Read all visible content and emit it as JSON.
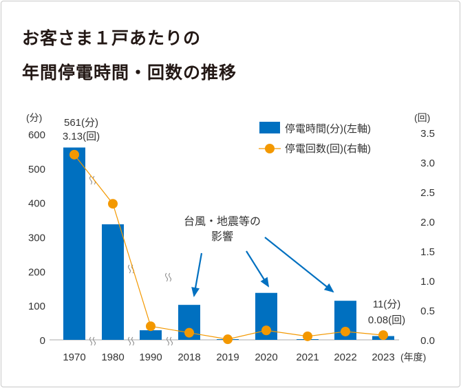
{
  "title_lines": [
    "お客さま１戸あたりの",
    "年間停電時間・回数の推移"
  ],
  "chart_data": {
    "type": "bar",
    "categories": [
      "1970",
      "1980",
      "1990",
      "2018",
      "2019",
      "2020",
      "2021",
      "2022",
      "2023"
    ],
    "x_unit_label": "(年度)",
    "series": [
      {
        "name": "停電時間(分)(左軸)",
        "type": "bar",
        "axis": "left",
        "color": "#0070c0",
        "values": [
          561,
          337,
          28,
          102,
          2,
          137,
          2,
          114,
          11
        ]
      },
      {
        "name": "停電回数(回)(右軸)",
        "type": "line",
        "axis": "right",
        "color": "#f39800",
        "values": [
          3.13,
          2.3,
          0.23,
          0.12,
          0.01,
          0.16,
          0.06,
          0.14,
          0.08
        ]
      }
    ],
    "left_axis": {
      "unit_label": "(分)",
      "ylim": [
        0,
        600
      ],
      "ticks": [
        "0",
        "100",
        "200",
        "300",
        "400",
        "500",
        "600"
      ]
    },
    "right_axis": {
      "unit_label": "(回)",
      "ylim": [
        0,
        3.5
      ],
      "ticks": [
        "0.0",
        "0.5",
        "1.0",
        "1.5",
        "2.0",
        "2.5",
        "3.0",
        "3.5"
      ]
    },
    "annotations": {
      "first": [
        "561(分)",
        "3.13(回)"
      ],
      "last": [
        "11(分)",
        "0.08(回)"
      ],
      "callout": [
        "台風・地震等の",
        "影響"
      ]
    },
    "legend_placement": "top-right",
    "grid": false
  }
}
